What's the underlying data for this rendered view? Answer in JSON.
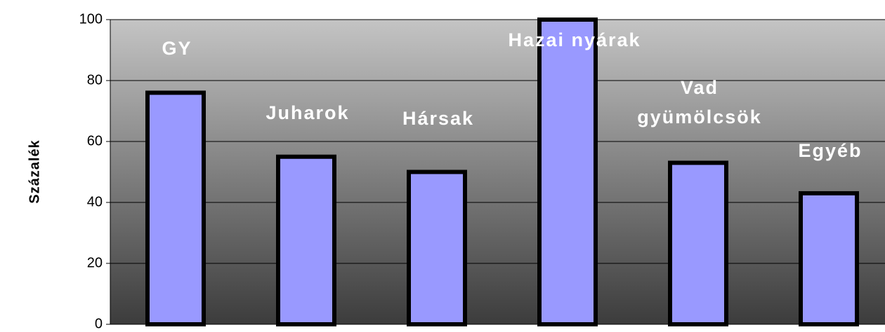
{
  "chart_data": {
    "type": "bar",
    "y_label": "Százalék",
    "categories": [
      "GY",
      "Juharok",
      "Hársak",
      "Hazai nyárak",
      "Vad gyümölcsök",
      "Egyéb"
    ],
    "values": [
      76,
      55,
      50,
      100,
      53,
      43
    ],
    "color": "#9999ff",
    "ylim": [
      0,
      100
    ],
    "yticks": [
      0,
      20,
      40,
      60,
      80,
      100
    ],
    "grid": true
  }
}
